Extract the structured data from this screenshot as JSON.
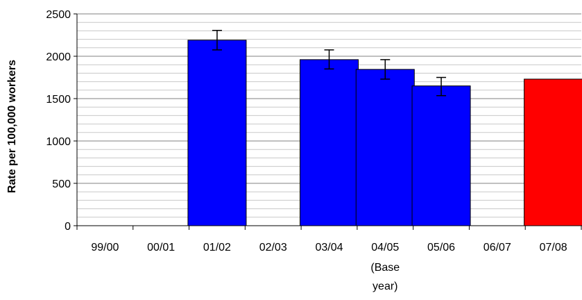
{
  "chart_data": {
    "type": "bar",
    "categories": [
      "99/00",
      "00/01",
      "01/02",
      "02/03",
      "03/04",
      "04/05",
      "05/06",
      "06/07",
      "07/08"
    ],
    "category_sublabels": [
      "",
      "",
      "",
      "",
      "",
      "(Base\nyear)",
      "",
      "",
      ""
    ],
    "values": [
      null,
      null,
      2190,
      null,
      1960,
      1845,
      1650,
      null,
      1730
    ],
    "error_low": [
      null,
      null,
      2075,
      null,
      1850,
      1730,
      1535,
      null,
      null
    ],
    "error_high": [
      null,
      null,
      2305,
      null,
      2075,
      1960,
      1750,
      null,
      null
    ],
    "bar_colors": [
      "#0000ff",
      "#0000ff",
      "#0000ff",
      "#0000ff",
      "#0000ff",
      "#0000ff",
      "#0000ff",
      "#0000ff",
      "#ff0000"
    ],
    "title": "",
    "xlabel": "",
    "ylabel": "Rate per 100,000 workers",
    "ylim": [
      0,
      2500
    ],
    "yticks": [
      0,
      500,
      1000,
      1500,
      2000,
      2500
    ],
    "minor_grid_step": 100,
    "grid": true
  }
}
